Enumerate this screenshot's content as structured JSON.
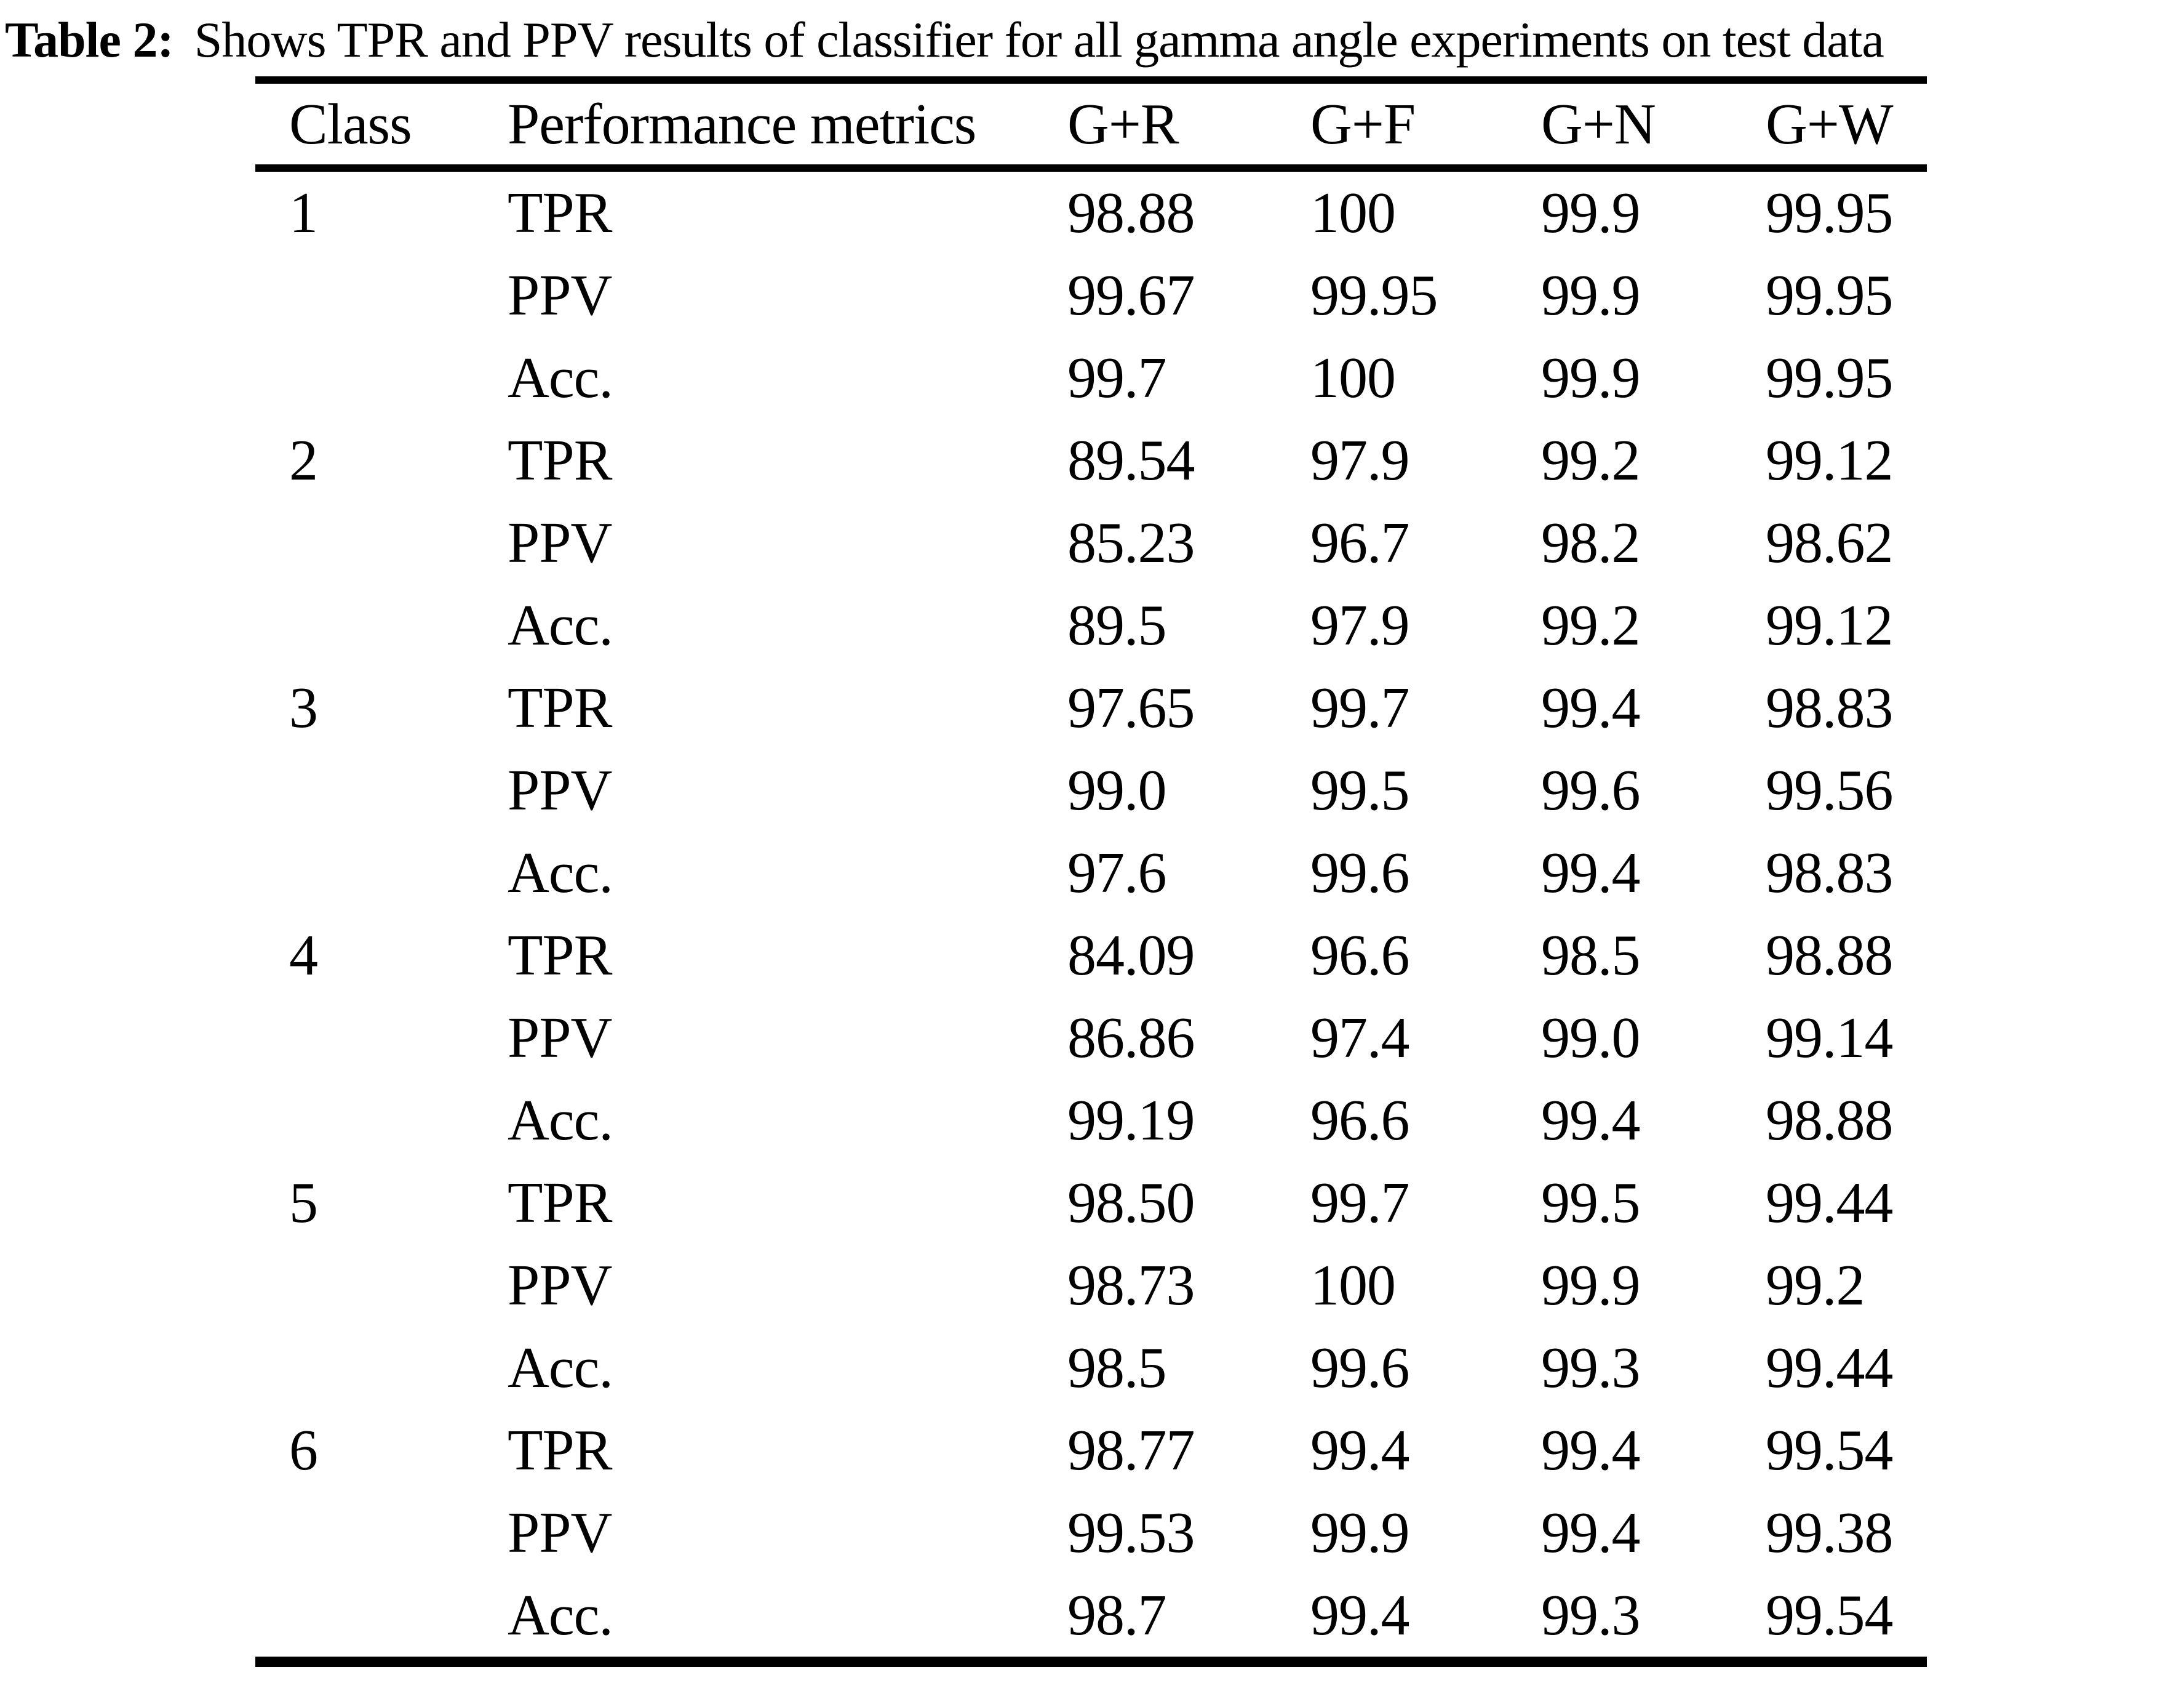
{
  "title": {
    "label": "Table 2:",
    "text": "Shows TPR and PPV results of classifier for all gamma angle experiments on test data"
  },
  "table": {
    "headers": {
      "class": "Class",
      "metric": "Performance metrics",
      "gr": "G+R",
      "gf": "G+F",
      "gn": "G+N",
      "gw": "G+W"
    },
    "rows": [
      {
        "class": "1",
        "metric": "TPR",
        "gr": "98.88",
        "gf": "100",
        "gn": "99.9",
        "gw": "99.95"
      },
      {
        "class": "",
        "metric": "PPV",
        "gr": "99.67",
        "gf": "99.95",
        "gn": "99.9",
        "gw": "99.95"
      },
      {
        "class": "",
        "metric": "Acc.",
        "gr": "99.7",
        "gf": "100",
        "gn": "99.9",
        "gw": "99.95"
      },
      {
        "class": "2",
        "metric": "TPR",
        "gr": "89.54",
        "gf": "97.9",
        "gn": "99.2",
        "gw": "99.12"
      },
      {
        "class": "",
        "metric": "PPV",
        "gr": "85.23",
        "gf": "96.7",
        "gn": "98.2",
        "gw": "98.62"
      },
      {
        "class": "",
        "metric": "Acc.",
        "gr": "89.5",
        "gf": "97.9",
        "gn": "99.2",
        "gw": "99.12"
      },
      {
        "class": "3",
        "metric": "TPR",
        "gr": "97.65",
        "gf": "99.7",
        "gn": "99.4",
        "gw": "98.83"
      },
      {
        "class": "",
        "metric": "PPV",
        "gr": "99.0",
        "gf": "99.5",
        "gn": "99.6",
        "gw": "99.56"
      },
      {
        "class": "",
        "metric": "Acc.",
        "gr": "97.6",
        "gf": "99.6",
        "gn": "99.4",
        "gw": "98.83"
      },
      {
        "class": "4",
        "metric": "TPR",
        "gr": "84.09",
        "gf": "96.6",
        "gn": "98.5",
        "gw": "98.88"
      },
      {
        "class": "",
        "metric": "PPV",
        "gr": "86.86",
        "gf": "97.4",
        "gn": "99.0",
        "gw": "99.14"
      },
      {
        "class": "",
        "metric": "Acc.",
        "gr": "99.19",
        "gf": "96.6",
        "gn": "99.4",
        "gw": "98.88"
      },
      {
        "class": "5",
        "metric": "TPR",
        "gr": "98.50",
        "gf": "99.7",
        "gn": "99.5",
        "gw": "99.44"
      },
      {
        "class": "",
        "metric": "PPV",
        "gr": "98.73",
        "gf": "100",
        "gn": "99.9",
        "gw": "99.2"
      },
      {
        "class": "",
        "metric": "Acc.",
        "gr": "98.5",
        "gf": "99.6",
        "gn": "99.3",
        "gw": "99.44"
      },
      {
        "class": "6",
        "metric": "TPR",
        "gr": "98.77",
        "gf": "99.4",
        "gn": "99.4",
        "gw": "99.54"
      },
      {
        "class": "",
        "metric": "PPV",
        "gr": "99.53",
        "gf": "99.9",
        "gn": "99.4",
        "gw": "99.38"
      },
      {
        "class": "",
        "metric": "Acc.",
        "gr": "98.7",
        "gf": "99.4",
        "gn": "99.3",
        "gw": "99.54"
      }
    ]
  },
  "colors": {
    "text": "#000000",
    "background": "#ffffff",
    "rule": "#000000"
  }
}
